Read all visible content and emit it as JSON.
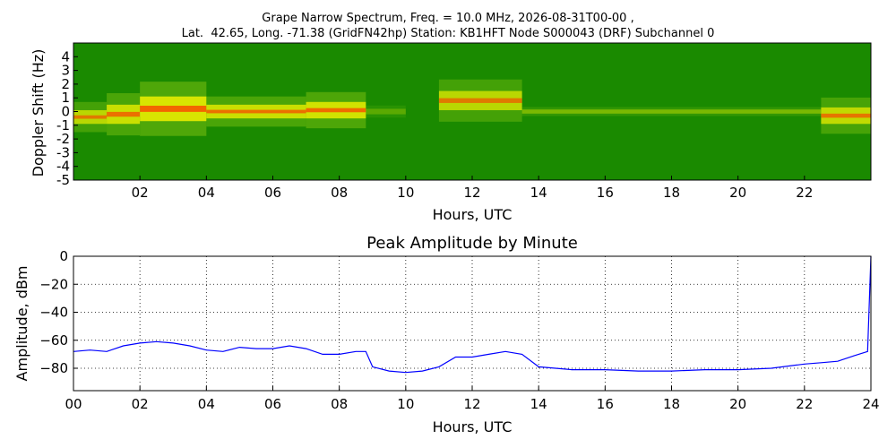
{
  "figure": {
    "title_line1": "Grape Narrow Spectrum, Freq. = 10.0 MHz, 2026-08-31T00-00 ,",
    "title_line2": "Lat.  42.65, Long. -71.38 (GridFN42hp) Station: KB1HFT Node S000043 (DRF) Subchannel 0"
  },
  "colors": {
    "spectrum_background": "#1a8a00",
    "spectrum_mid": "#7cc010",
    "spectrum_high": "#f0f000",
    "spectrum_peak": "#ff3000",
    "line": "#0000ff",
    "grid": "#000000"
  },
  "chart_data": [
    {
      "type": "heatmap",
      "title": "",
      "xlabel": "Hours, UTC",
      "ylabel": "Doppler Shift (Hz)",
      "xlim": [
        0,
        24
      ],
      "ylim": [
        -5,
        5
      ],
      "xticks": [
        "02",
        "04",
        "06",
        "08",
        "10",
        "12",
        "14",
        "16",
        "18",
        "20",
        "22"
      ],
      "xtick_values": [
        2,
        4,
        6,
        8,
        10,
        12,
        14,
        16,
        18,
        20,
        22
      ],
      "yticks": [
        "4",
        "3",
        "2",
        "1",
        "0",
        "-1",
        "-2",
        "-3",
        "-4",
        "-5"
      ],
      "ytick_values": [
        4,
        3,
        2,
        1,
        0,
        -1,
        -2,
        -3,
        -4,
        -5
      ],
      "signal_bands": [
        {
          "hours": [
            0.0,
            1.0
          ],
          "center_hz": -0.4,
          "halfwidth_hz": 0.5,
          "intensity": 0.8
        },
        {
          "hours": [
            1.0,
            2.0
          ],
          "center_hz": -0.2,
          "halfwidth_hz": 0.7,
          "intensity": 0.9
        },
        {
          "hours": [
            2.0,
            4.0
          ],
          "center_hz": 0.2,
          "halfwidth_hz": 0.9,
          "intensity": 1.0
        },
        {
          "hours": [
            4.0,
            7.0
          ],
          "center_hz": 0.0,
          "halfwidth_hz": 0.5,
          "intensity": 0.9
        },
        {
          "hours": [
            7.0,
            8.8
          ],
          "center_hz": 0.1,
          "halfwidth_hz": 0.6,
          "intensity": 0.95
        },
        {
          "hours": [
            8.8,
            10.0
          ],
          "center_hz": 0.0,
          "halfwidth_hz": 0.2,
          "intensity": 0.3
        },
        {
          "hours": [
            11.0,
            13.5
          ],
          "center_hz": 0.8,
          "halfwidth_hz": 0.7,
          "intensity": 0.8
        },
        {
          "hours": [
            13.5,
            22.5
          ],
          "center_hz": 0.0,
          "halfwidth_hz": 0.15,
          "intensity": 0.45
        },
        {
          "hours": [
            22.5,
            24.0
          ],
          "center_hz": -0.3,
          "halfwidth_hz": 0.6,
          "intensity": 0.85
        }
      ]
    },
    {
      "type": "line",
      "title": "Peak Amplitude by Minute",
      "xlabel": "Hours, UTC",
      "ylabel": "Amplitude, dBm",
      "xlim": [
        0,
        24
      ],
      "ylim": [
        -96,
        0
      ],
      "grid": true,
      "xticks": [
        "00",
        "02",
        "04",
        "06",
        "08",
        "10",
        "12",
        "14",
        "16",
        "18",
        "20",
        "22",
        "24"
      ],
      "xtick_values": [
        0,
        2,
        4,
        6,
        8,
        10,
        12,
        14,
        16,
        18,
        20,
        22,
        24
      ],
      "yticks": [
        "0",
        "−20",
        "−40",
        "−60",
        "−80"
      ],
      "ytick_values": [
        0,
        -20,
        -40,
        -60,
        -80
      ],
      "series": [
        {
          "x": [
            0,
            0.5,
            1,
            1.5,
            2,
            2.5,
            3,
            3.5,
            4,
            4.5,
            5,
            5.5,
            6,
            6.5,
            7,
            7.5,
            8,
            8.5,
            8.8,
            9,
            9.5,
            10,
            10.5,
            11,
            11.5,
            12,
            12.5,
            13,
            13.5,
            14,
            15,
            16,
            17,
            18,
            19,
            20,
            21,
            22,
            22.5,
            23,
            23.5,
            23.9,
            24
          ],
          "y": [
            -68,
            -67,
            -68,
            -64,
            -62,
            -61,
            -62,
            -64,
            -67,
            -68,
            -65,
            -66,
            -66,
            -64,
            -66,
            -70,
            -70,
            -68,
            -68,
            -79,
            -82,
            -83,
            -82,
            -79,
            -72,
            -72,
            -70,
            -68,
            -70,
            -79,
            -81,
            -81,
            -82,
            -82,
            -81,
            -81,
            -80,
            -77,
            -76,
            -75,
            -71,
            -68,
            0
          ]
        }
      ]
    }
  ]
}
